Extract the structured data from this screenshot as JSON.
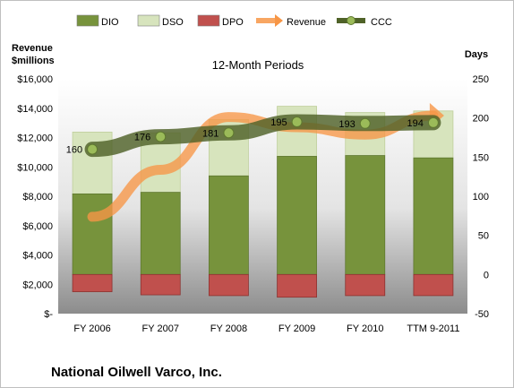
{
  "chart_data": {
    "type": "bar",
    "title": "12-Month Periods",
    "company": "National Oilwell Varco, Inc.",
    "left_axis_title": [
      "Revenue",
      "$millions"
    ],
    "right_axis_title": "Days",
    "categories": [
      "FY 2006",
      "FY 2007",
      "FY 2008",
      "FY 2009",
      "FY 2010",
      "TTM 9-2011"
    ],
    "y_left": {
      "min": 0,
      "max": 16000,
      "step": 2000,
      "tick_labels": [
        "$-",
        "$2,000",
        "$4,000",
        "$6,000",
        "$8,000",
        "$10,000",
        "$12,000",
        "$14,000",
        "$16,000"
      ]
    },
    "y_right": {
      "min": -50,
      "max": 250,
      "step": 50,
      "tick_labels": [
        "-50",
        "0",
        "50",
        "100",
        "150",
        "200",
        "250"
      ]
    },
    "legend_position": "top",
    "legend": [
      {
        "name": "DIO",
        "kind": "bar",
        "color": "#77933c"
      },
      {
        "name": "DSO",
        "kind": "bar",
        "color": "#d7e4bd"
      },
      {
        "name": "DPO",
        "kind": "bar",
        "color": "#c0504d"
      },
      {
        "name": "Revenue",
        "kind": "arrow",
        "color": "#f79646"
      },
      {
        "name": "CCC",
        "kind": "line",
        "color": "#4f6228"
      }
    ],
    "series": [
      {
        "name": "DIO",
        "axis": "right",
        "values": [
          103,
          105,
          126,
          151,
          152,
          149
        ]
      },
      {
        "name": "DSO",
        "axis": "right",
        "values": [
          79,
          76,
          72,
          64,
          55,
          60
        ]
      },
      {
        "name": "DPO",
        "axis": "right",
        "values": [
          -22,
          -26,
          -27,
          -29,
          -27,
          -27
        ]
      },
      {
        "name": "Revenue",
        "axis": "left",
        "values": [
          6600,
          9800,
          13400,
          12700,
          12200,
          13500
        ]
      },
      {
        "name": "CCC",
        "axis": "right",
        "values": [
          160,
          176,
          181,
          195,
          193,
          194
        ]
      }
    ],
    "data_labels": [
      "160",
      "176",
      "181",
      "195",
      "193",
      "194"
    ],
    "grid": false
  }
}
